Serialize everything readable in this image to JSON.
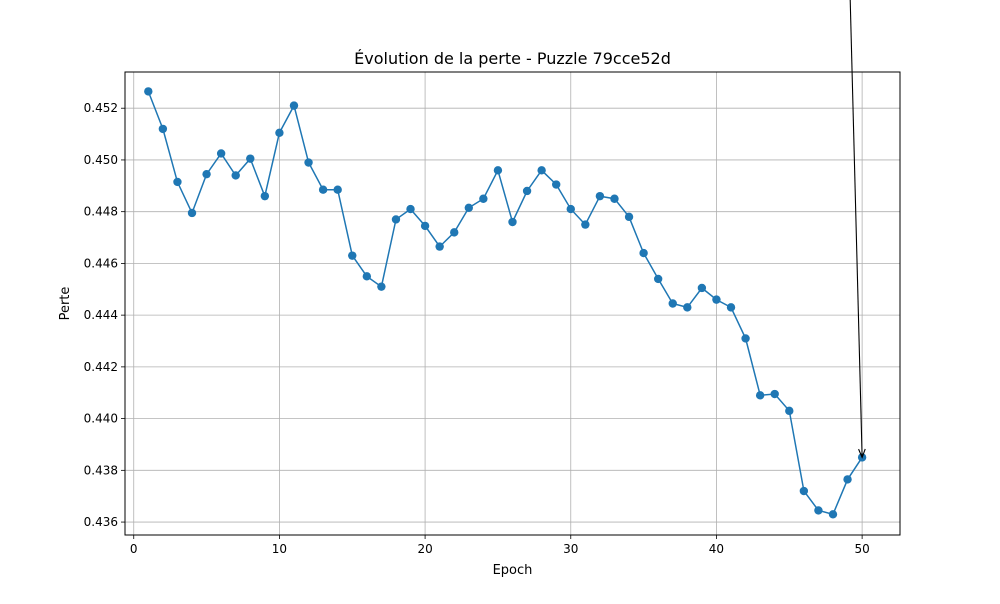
{
  "chart_data": {
    "type": "line",
    "title": "Évolution de la perte - Puzzle 79cce52d",
    "xlabel": "Epoch",
    "ylabel": "Perte",
    "xlim": [
      -0.6,
      52.6
    ],
    "ylim": [
      0.4355,
      0.4534
    ],
    "x_ticks": [
      0,
      10,
      20,
      30,
      40,
      50
    ],
    "y_ticks": [
      0.436,
      0.438,
      0.44,
      0.442,
      0.444,
      0.446,
      0.448,
      0.45,
      0.452
    ],
    "y_tick_labels": [
      "0.436",
      "0.438",
      "0.440",
      "0.442",
      "0.444",
      "0.446",
      "0.448",
      "0.450",
      "0.452"
    ],
    "grid": true,
    "legend": "none",
    "series": [
      {
        "color": "#1f77b4",
        "marker": "circle",
        "x": [
          1,
          2,
          3,
          4,
          5,
          6,
          7,
          8,
          9,
          10,
          11,
          12,
          13,
          14,
          15,
          16,
          17,
          18,
          19,
          20,
          21,
          22,
          23,
          24,
          25,
          26,
          27,
          28,
          29,
          30,
          31,
          32,
          33,
          34,
          35,
          36,
          37,
          38,
          39,
          40,
          41,
          42,
          43,
          44,
          45,
          46,
          47,
          48,
          49,
          50
        ],
        "values": [
          0.45265,
          0.4512,
          0.44915,
          0.44795,
          0.44945,
          0.45025,
          0.4494,
          0.45005,
          0.4486,
          0.45105,
          0.4521,
          0.4499,
          0.44885,
          0.44885,
          0.4463,
          0.4455,
          0.4451,
          0.4477,
          0.4481,
          0.44745,
          0.44665,
          0.4472,
          0.44815,
          0.4485,
          0.4496,
          0.4476,
          0.4488,
          0.4496,
          0.44905,
          0.4481,
          0.4475,
          0.4486,
          0.4485,
          0.4478,
          0.4464,
          0.4454,
          0.44445,
          0.4443,
          0.44505,
          0.4446,
          0.4443,
          0.4431,
          0.4409,
          0.44095,
          0.4403,
          0.4372,
          0.43645,
          0.4363,
          0.43765,
          0.4385
        ]
      }
    ],
    "annotation": {
      "type": "arrow",
      "target_x": 50,
      "target_y": 0.4385,
      "text": ""
    }
  }
}
